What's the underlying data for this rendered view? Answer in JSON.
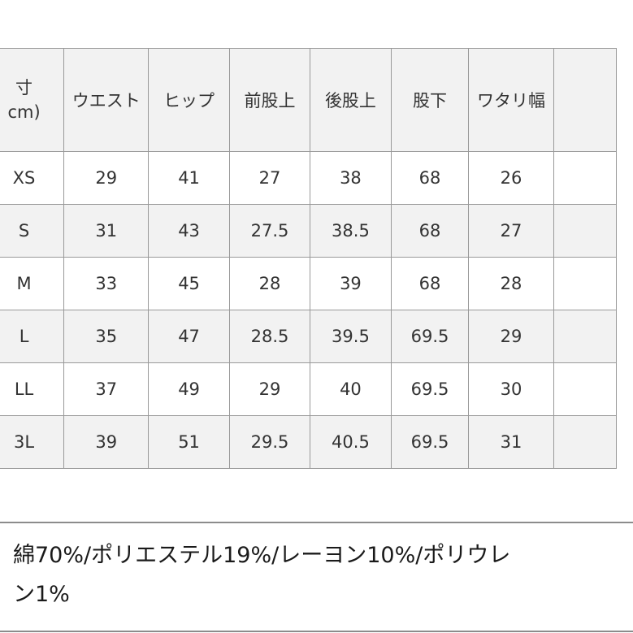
{
  "table": {
    "header": {
      "size_label": "寸",
      "unit_label": "cm)",
      "columns": [
        "ウエスト",
        "ヒップ",
        "前股上",
        "後股上",
        "股下",
        "ワタリ幅"
      ]
    },
    "rows": [
      {
        "size": "XS",
        "values": [
          "29",
          "41",
          "27",
          "38",
          "68",
          "26"
        ]
      },
      {
        "size": "S",
        "values": [
          "31",
          "43",
          "27.5",
          "38.5",
          "68",
          "27"
        ]
      },
      {
        "size": "M",
        "values": [
          "33",
          "45",
          "28",
          "39",
          "68",
          "28"
        ]
      },
      {
        "size": "L",
        "values": [
          "35",
          "47",
          "28.5",
          "39.5",
          "69.5",
          "29"
        ]
      },
      {
        "size": "LL",
        "values": [
          "37",
          "49",
          "29",
          "40",
          "69.5",
          "30"
        ]
      },
      {
        "size": "3L",
        "values": [
          "39",
          "51",
          "29.5",
          "40.5",
          "69.5",
          "31"
        ]
      }
    ]
  },
  "material": {
    "line1": "綿70%/ポリエステル19%/レーヨン10%/ポリウレ",
    "line2": "ン1%"
  }
}
